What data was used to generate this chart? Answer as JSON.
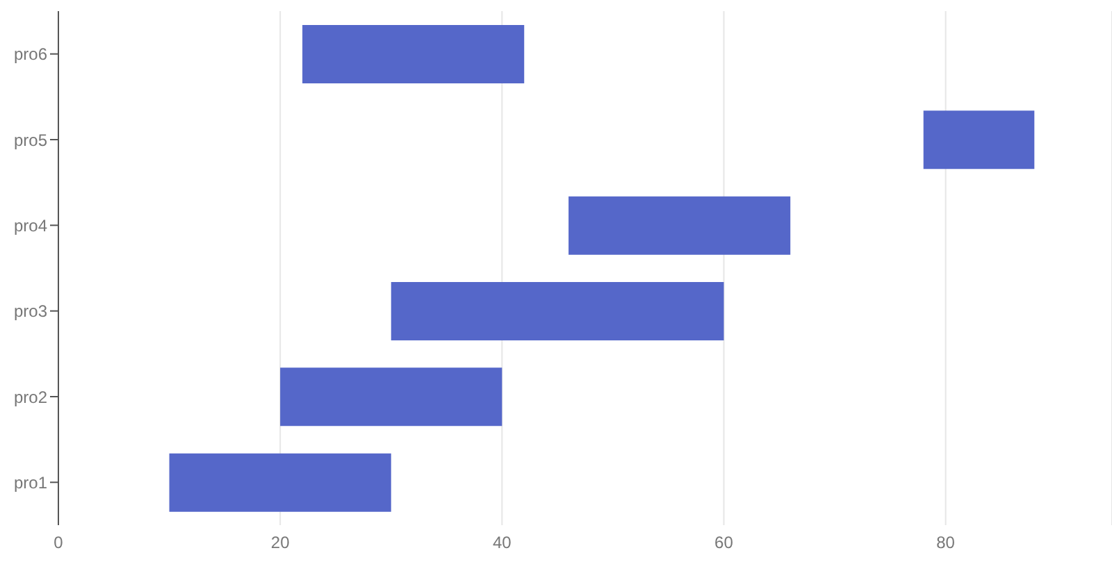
{
  "chart_data": {
    "type": "bar",
    "orientation": "horizontal",
    "categories": [
      "pro6",
      "pro5",
      "pro4",
      "pro3",
      "pro2",
      "pro1"
    ],
    "values": [
      20,
      10,
      20,
      30,
      20,
      20
    ],
    "base": [
      22,
      78,
      46,
      30,
      20,
      10
    ],
    "color": "#5567c9",
    "xlim": [
      0,
      95
    ],
    "xticks": [
      0,
      20,
      40,
      60,
      80
    ],
    "grid": "x"
  }
}
